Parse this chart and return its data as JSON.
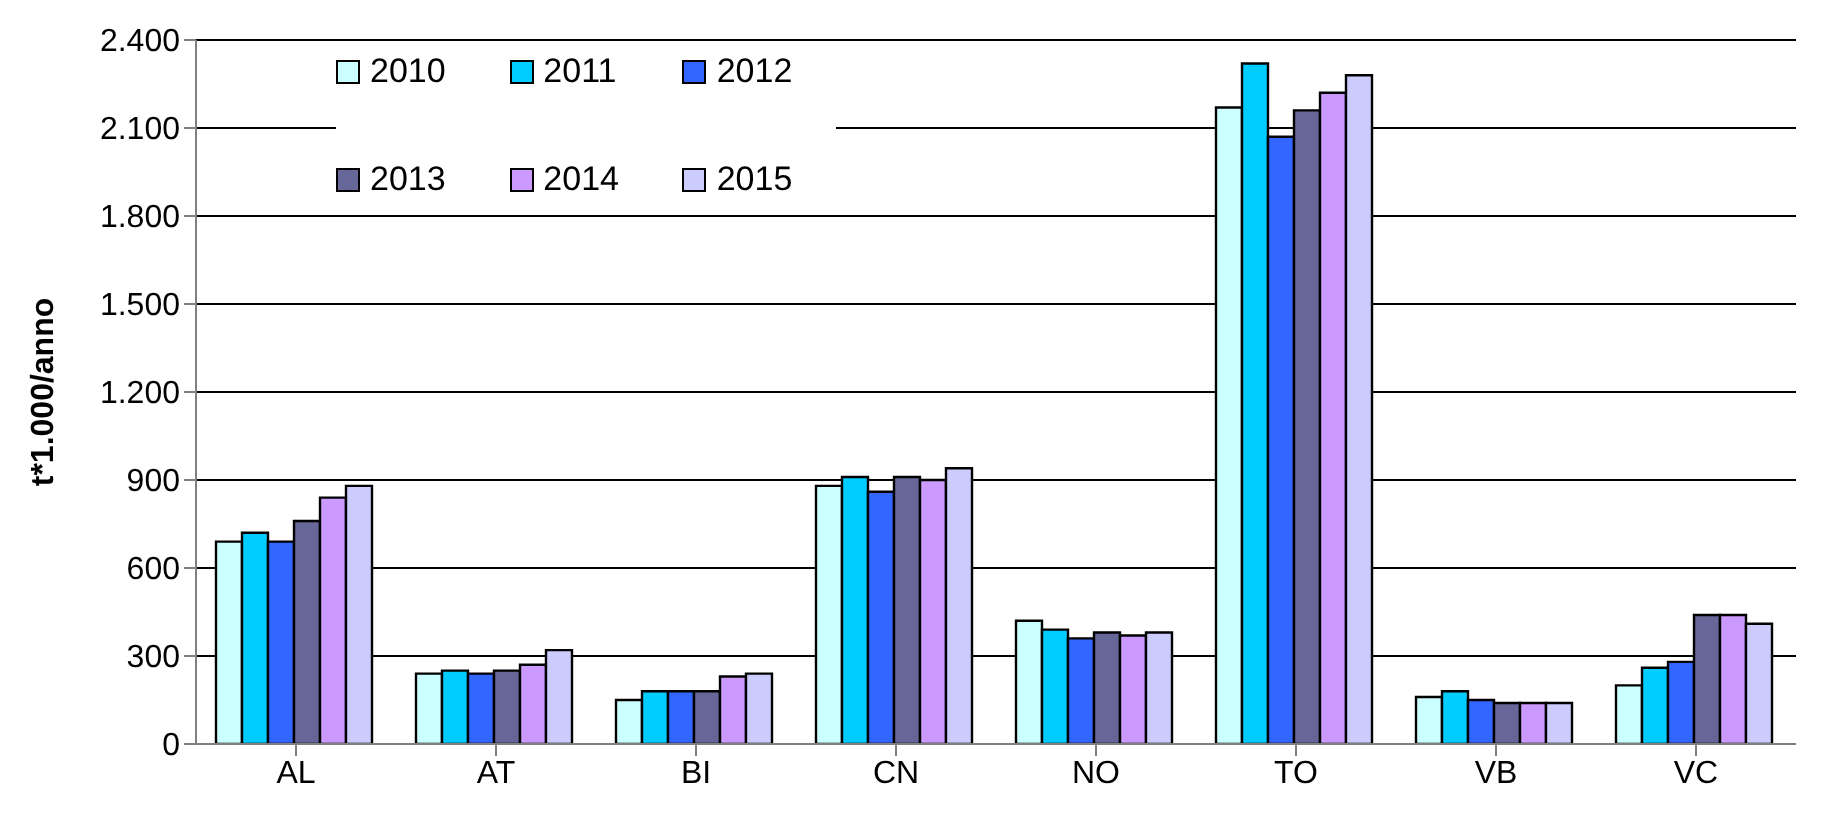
{
  "chart_data": {
    "type": "bar",
    "ylabel": "t*1.000/anno",
    "categories": [
      "AL",
      "AT",
      "BI",
      "CN",
      "NO",
      "TO",
      "VB",
      "VC"
    ],
    "series": [
      {
        "name": "2010",
        "color": "#ccffff",
        "values": [
          690,
          240,
          150,
          880,
          420,
          2170,
          160,
          200
        ]
      },
      {
        "name": "2011",
        "color": "#00ccff",
        "values": [
          720,
          250,
          180,
          910,
          390,
          2320,
          180,
          260
        ]
      },
      {
        "name": "2012",
        "color": "#3366ff",
        "values": [
          690,
          240,
          180,
          860,
          360,
          2070,
          150,
          280
        ]
      },
      {
        "name": "2013",
        "color": "#666699",
        "values": [
          760,
          250,
          180,
          910,
          380,
          2160,
          140,
          440
        ]
      },
      {
        "name": "2014",
        "color": "#cc99ff",
        "values": [
          840,
          270,
          230,
          900,
          370,
          2220,
          140,
          440
        ]
      },
      {
        "name": "2015",
        "color": "#ccccff",
        "values": [
          880,
          320,
          240,
          940,
          380,
          2280,
          140,
          410
        ]
      }
    ],
    "ylim": [
      0,
      2400
    ],
    "yticks": [
      0,
      300,
      600,
      900,
      {
        "value": 1200,
        "label": "1.200"
      },
      {
        "value": 1500,
        "label": "1.500"
      },
      {
        "value": 1800,
        "label": "1.800"
      },
      {
        "value": 2100,
        "label": "2.100"
      },
      {
        "value": 2400,
        "label": "2.400"
      }
    ],
    "grid": "y",
    "legend": "top left"
  }
}
